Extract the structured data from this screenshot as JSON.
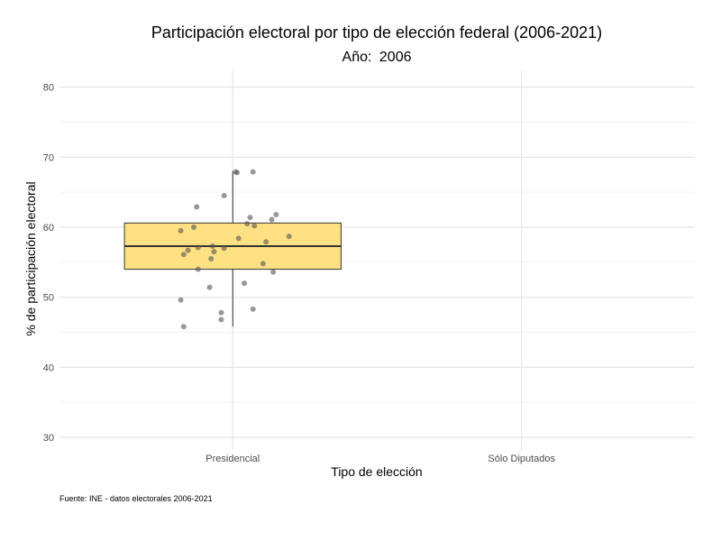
{
  "chart_data": {
    "type": "boxplot",
    "title": "Participación electoral por tipo de elección federal (2006-2021)",
    "subtitle_label": "Año:",
    "subtitle_value": "2006",
    "xlabel": "Tipo de elección",
    "ylabel": "% de participación electoral",
    "caption": "Fuente: INE - datos electorales 2006-2021",
    "categories": [
      "Presidencial",
      "Sólo Diputados"
    ],
    "ylim": [
      28.2,
      82.4
    ],
    "yticks": [
      30,
      40,
      50,
      60,
      70,
      80
    ],
    "grid": true,
    "colors": {
      "box_fill": "#FFE082",
      "box_stroke": "#333333",
      "point": "#555555",
      "grid_major": "#e6e6e6",
      "grid_minor": "#f2f2f2"
    },
    "boxes": [
      {
        "category": "Presidencial",
        "min": 45.8,
        "q1": 54.0,
        "median": 57.3,
        "q3": 60.6,
        "max": 68.0
      }
    ],
    "points": [
      {
        "category": "Presidencial",
        "y": 67.9,
        "jitter": 0.01
      },
      {
        "category": "Presidencial",
        "y": 67.8,
        "jitter": 0.015
      },
      {
        "category": "Presidencial",
        "y": 67.9,
        "jitter": 0.07
      },
      {
        "category": "Presidencial",
        "y": 64.5,
        "jitter": -0.03
      },
      {
        "category": "Presidencial",
        "y": 62.9,
        "jitter": -0.125
      },
      {
        "category": "Presidencial",
        "y": 61.8,
        "jitter": 0.15
      },
      {
        "category": "Presidencial",
        "y": 61.4,
        "jitter": 0.06
      },
      {
        "category": "Presidencial",
        "y": 61.1,
        "jitter": 0.135
      },
      {
        "category": "Presidencial",
        "y": 60.5,
        "jitter": 0.05
      },
      {
        "category": "Presidencial",
        "y": 60.2,
        "jitter": 0.075
      },
      {
        "category": "Presidencial",
        "y": 60.0,
        "jitter": -0.135
      },
      {
        "category": "Presidencial",
        "y": 59.5,
        "jitter": -0.18
      },
      {
        "category": "Presidencial",
        "y": 58.7,
        "jitter": 0.195
      },
      {
        "category": "Presidencial",
        "y": 58.4,
        "jitter": 0.02
      },
      {
        "category": "Presidencial",
        "y": 57.9,
        "jitter": 0.115
      },
      {
        "category": "Presidencial",
        "y": 57.3,
        "jitter": -0.07
      },
      {
        "category": "Presidencial",
        "y": 57.1,
        "jitter": -0.12
      },
      {
        "category": "Presidencial",
        "y": 57.0,
        "jitter": -0.03
      },
      {
        "category": "Presidencial",
        "y": 56.7,
        "jitter": -0.155
      },
      {
        "category": "Presidencial",
        "y": 56.5,
        "jitter": -0.065
      },
      {
        "category": "Presidencial",
        "y": 56.1,
        "jitter": -0.17
      },
      {
        "category": "Presidencial",
        "y": 55.5,
        "jitter": -0.075
      },
      {
        "category": "Presidencial",
        "y": 54.8,
        "jitter": 0.105
      },
      {
        "category": "Presidencial",
        "y": 54.0,
        "jitter": -0.12
      },
      {
        "category": "Presidencial",
        "y": 53.6,
        "jitter": 0.14
      },
      {
        "category": "Presidencial",
        "y": 52.0,
        "jitter": 0.04
      },
      {
        "category": "Presidencial",
        "y": 51.4,
        "jitter": -0.08
      },
      {
        "category": "Presidencial",
        "y": 49.6,
        "jitter": -0.18
      },
      {
        "category": "Presidencial",
        "y": 48.3,
        "jitter": 0.07
      },
      {
        "category": "Presidencial",
        "y": 47.8,
        "jitter": -0.04
      },
      {
        "category": "Presidencial",
        "y": 46.8,
        "jitter": -0.04
      },
      {
        "category": "Presidencial",
        "y": 45.8,
        "jitter": -0.17
      }
    ]
  }
}
